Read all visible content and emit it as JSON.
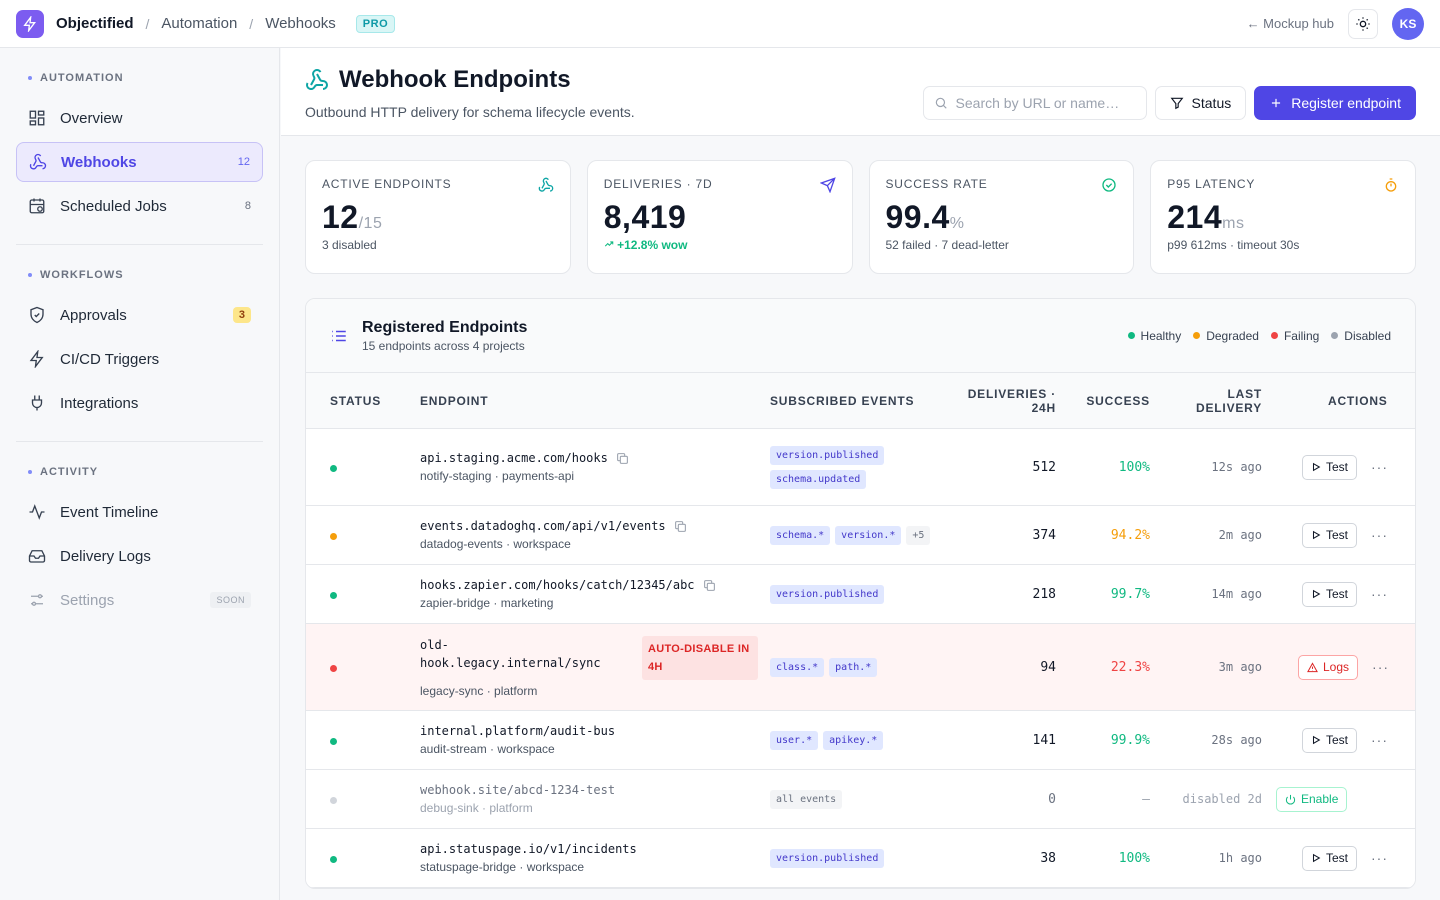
{
  "topbar": {
    "app": "Objectified",
    "crumb1": "Automation",
    "crumb2": "Webhooks",
    "badge": "PRO",
    "hub": "← Mockup hub",
    "avatar": "KS"
  },
  "sidebar": {
    "sections": [
      {
        "title": "AUTOMATION"
      },
      {
        "title": "WORKFLOWS"
      },
      {
        "title": "ACTIVITY"
      }
    ],
    "items": {
      "overview": "Overview",
      "webhooks": "Webhooks",
      "webhooks_count": "12",
      "scheduled": "Scheduled Jobs",
      "scheduled_count": "8",
      "approvals": "Approvals",
      "approvals_count": "3",
      "cicd": "CI/CD Triggers",
      "integrations": "Integrations",
      "timeline": "Event Timeline",
      "delivery": "Delivery Logs",
      "settings": "Settings",
      "soon": "SOON"
    }
  },
  "header": {
    "title": "Webhook Endpoints",
    "subtitle": "Outbound HTTP delivery for schema lifecycle events.",
    "search_placeholder": "Search by URL or name…",
    "status_btn": "Status",
    "register_btn": "Register endpoint"
  },
  "stats": [
    {
      "label": "ACTIVE ENDPOINTS",
      "value": "12",
      "suffix": "/15",
      "foot": "3 disabled"
    },
    {
      "label": "DELIVERIES · 7D",
      "value": "8,419",
      "suffix": "",
      "foot": "+12.8% wow"
    },
    {
      "label": "SUCCESS RATE",
      "value": "99.4",
      "suffix": "%",
      "foot": "52 failed · 7 dead-letter"
    },
    {
      "label": "P95 LATENCY",
      "value": "214",
      "suffix": "ms",
      "foot": "p99 612ms · timeout 30s"
    }
  ],
  "panel": {
    "title": "Registered Endpoints",
    "subtitle": "15 endpoints across 4 projects",
    "legend": [
      "Healthy",
      "Degraded",
      "Failing",
      "Disabled"
    ]
  },
  "columns": {
    "status": "STATUS",
    "endpoint": "ENDPOINT",
    "events": "SUBSCRIBED EVENTS",
    "del1": "DELIVERIES ·",
    "del2": "24H",
    "success": "SUCCESS",
    "last1": "LAST",
    "last2": "DELIVERY",
    "actions": "ACTIONS"
  },
  "colors": {
    "healthy": "#10b981",
    "degraded": "#f59e0b",
    "failing": "#ef4444",
    "disabled": "#d1d5db",
    "accent": "#4f46e5"
  },
  "rows": [
    {
      "url": "api.staging.acme.com/hooks",
      "sub": "notify-staging · payments-api",
      "events": [
        "version.published",
        "schema.updated"
      ],
      "deliveries": "512",
      "success": "100%",
      "last": "12s ago",
      "action": "Test"
    },
    {
      "url": "events.datadoghq.com/api/v1/events",
      "sub": "datadog-events · workspace",
      "events": [
        "schema.*",
        "version.*",
        "+5"
      ],
      "deliveries": "374",
      "success": "94.2%",
      "last": "2m ago",
      "action": "Test"
    },
    {
      "url": "hooks.zapier.com/hooks/catch/12345/abc",
      "sub": "zapier-bridge · marketing",
      "events": [
        "version.published"
      ],
      "deliveries": "218",
      "success": "99.7%",
      "last": "14m ago",
      "action": "Test"
    },
    {
      "url1": "old-",
      "url2": "hook.legacy.internal/sync",
      "warn1": "AUTO-DISABLE IN",
      "warn2": "4H",
      "sub": "legacy-sync · platform",
      "events": [
        "class.*",
        "path.*"
      ],
      "deliveries": "94",
      "success": "22.3%",
      "last": "3m ago",
      "action": "Logs"
    },
    {
      "url": "internal.platform/audit-bus",
      "sub": "audit-stream · workspace",
      "events": [
        "user.*",
        "apikey.*"
      ],
      "deliveries": "141",
      "success": "99.9%",
      "last": "28s ago",
      "action": "Test"
    },
    {
      "url": "webhook.site/abcd-1234-test",
      "sub": "debug-sink · platform",
      "events": [
        "all events"
      ],
      "deliveries": "0",
      "success": "—",
      "last": "disabled 2d",
      "action": "Enable"
    },
    {
      "url": "api.statuspage.io/v1/incidents",
      "sub": "statuspage-bridge · workspace",
      "events": [
        "version.published"
      ],
      "deliveries": "38",
      "success": "100%",
      "last": "1h ago",
      "action": "Test"
    }
  ]
}
